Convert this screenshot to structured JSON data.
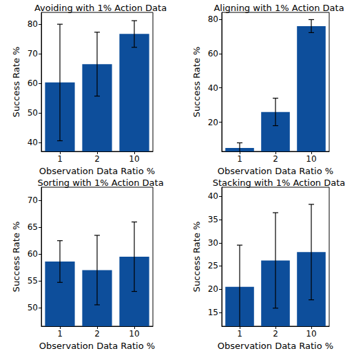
{
  "chart_data": [
    {
      "type": "bar",
      "title": "Avoiding with 1% Action Data",
      "xlabel": "Observation Data Ratio %",
      "ylabel": "Success Rate %",
      "categories": [
        "1",
        "2",
        "10"
      ],
      "values": [
        60.3,
        66.5,
        76.7
      ],
      "errors": [
        19.7,
        10.8,
        4.5
      ],
      "color": "#0d4e9b",
      "ylim": [
        37,
        84
      ],
      "yticks": [
        40,
        50,
        60,
        70,
        80
      ],
      "grid": false
    },
    {
      "type": "bar",
      "title": "Aligning with 1% Action Data",
      "xlabel": "Observation Data Ratio %",
      "ylabel": "Success Rate %",
      "categories": [
        "1",
        "2",
        "10"
      ],
      "values": [
        5,
        26,
        76
      ],
      "errors": [
        3,
        8,
        3.8
      ],
      "color": "#0d4e9b",
      "ylim": [
        3,
        84
      ],
      "yticks": [
        20,
        40,
        60,
        80
      ],
      "grid": false
    },
    {
      "type": "bar",
      "title": "Sorting with 1% Action Data",
      "xlabel": "Observation Data Ratio %",
      "ylabel": "Success Rate %",
      "categories": [
        "1",
        "2",
        "10"
      ],
      "values": [
        58.6,
        57,
        59.5
      ],
      "errors": [
        3.9,
        6.5,
        6.5
      ],
      "color": "#0d4e9b",
      "ylim": [
        46.5,
        72.5
      ],
      "yticks": [
        50,
        55,
        60,
        65,
        70
      ],
      "grid": false
    },
    {
      "type": "bar",
      "title": "Stacking with 1% Action Data",
      "xlabel": "Observation Data Ratio %",
      "ylabel": "Success Rate %",
      "categories": [
        "1",
        "2",
        "10"
      ],
      "values": [
        20.5,
        26.2,
        28
      ],
      "errors": [
        9,
        10.3,
        10.3
      ],
      "color": "#0d4e9b",
      "ylim": [
        12,
        42
      ],
      "yticks": [
        15,
        20,
        25,
        30,
        35,
        40
      ],
      "grid": false
    }
  ]
}
